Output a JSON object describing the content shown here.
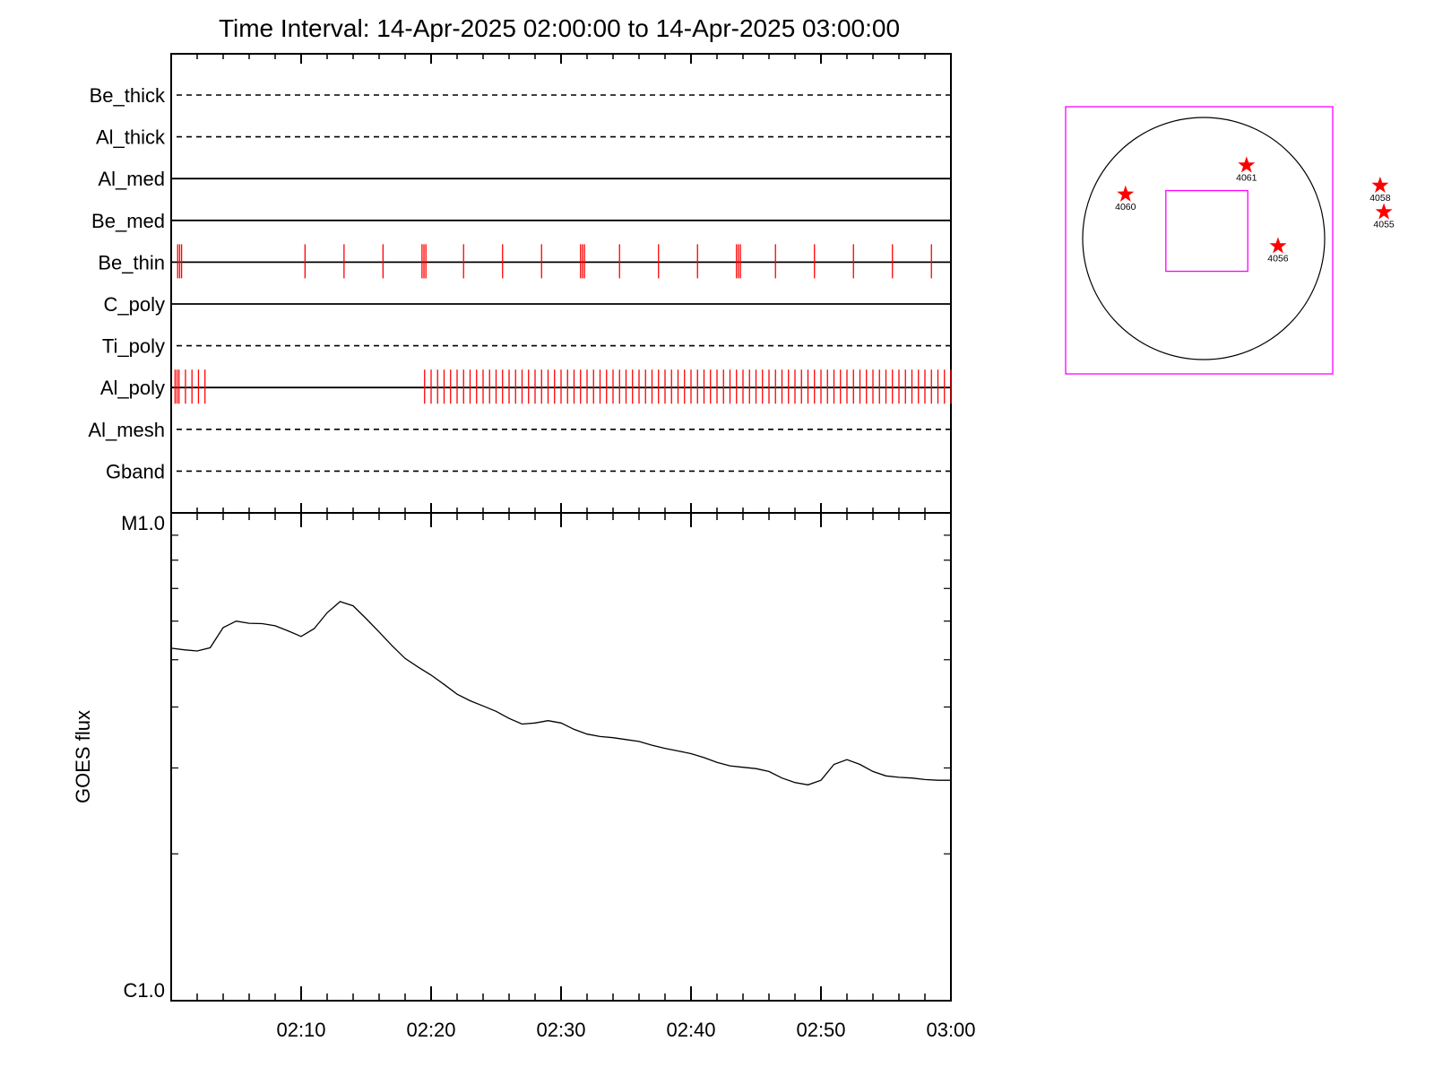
{
  "title": "Time Interval: 14-Apr-2025 02:00:00 to 14-Apr-2025 03:00:00",
  "colors": {
    "exposure_marks": "#ff0000",
    "axes": "#000000",
    "context_box": "#ff00ff",
    "star": "#ff0000"
  },
  "chart_data": [
    {
      "type": "timeline",
      "x_range": [
        0,
        60
      ],
      "x_unit": "minutes after 02:00",
      "channels": [
        {
          "name": "Be_thick",
          "line": "dashed",
          "exposures": []
        },
        {
          "name": "Al_thick",
          "line": "dashed",
          "exposures": []
        },
        {
          "name": "Al_med",
          "line": "solid",
          "exposures": []
        },
        {
          "name": "Be_med",
          "line": "solid",
          "exposures": []
        },
        {
          "name": "Be_thin",
          "line": "solid",
          "exposures": [
            0.5,
            0.65,
            0.8,
            10.3,
            13.3,
            16.3,
            19.3,
            19.45,
            19.6,
            22.5,
            25.5,
            28.5,
            31.5,
            31.65,
            31.8,
            34.5,
            37.5,
            40.5,
            43.5,
            43.65,
            43.8,
            46.5,
            49.5,
            52.5,
            55.5,
            58.5
          ]
        },
        {
          "name": "C_poly",
          "line": "solid",
          "exposures": []
        },
        {
          "name": "Ti_poly",
          "line": "dashed",
          "exposures": []
        },
        {
          "name": "Al_poly",
          "line": "solid",
          "exposures": [
            0.3,
            0.45,
            0.6,
            1.1,
            1.6,
            2.1,
            2.6,
            19.5,
            20.0,
            20.5,
            21.0,
            21.5,
            22.0,
            22.5,
            23.0,
            23.5,
            24.0,
            24.5,
            25.0,
            25.5,
            26.0,
            26.5,
            27.0,
            27.5,
            28.0,
            28.5,
            29.0,
            29.5,
            30.0,
            30.5,
            31.0,
            31.5,
            32.0,
            32.5,
            33.0,
            33.5,
            34.0,
            34.5,
            35.0,
            35.5,
            36.0,
            36.5,
            37.0,
            37.5,
            38.0,
            38.5,
            39.0,
            39.5,
            40.0,
            40.5,
            41.0,
            41.5,
            42.0,
            42.5,
            43.0,
            43.5,
            44.0,
            44.5,
            45.0,
            45.5,
            46.0,
            46.5,
            47.0,
            47.5,
            48.0,
            48.5,
            49.0,
            49.5,
            50.0,
            50.5,
            51.0,
            51.5,
            52.0,
            52.5,
            53.0,
            53.5,
            54.0,
            54.5,
            55.0,
            55.5,
            56.0,
            56.5,
            57.0,
            57.5,
            58.0,
            58.5,
            59.0,
            59.5,
            60.0
          ]
        },
        {
          "name": "Al_mesh",
          "line": "dashed",
          "exposures": []
        },
        {
          "name": "Gband",
          "line": "dashed",
          "exposures": []
        }
      ]
    },
    {
      "type": "line",
      "ylabel": "GOES flux",
      "y_scale": "log",
      "y_range": [
        1e-06,
        1e-05
      ],
      "y_tick_labels": [
        "C1.0",
        "M1.0"
      ],
      "x_range": [
        0,
        60
      ],
      "x_ticks": [
        10,
        20,
        30,
        40,
        50,
        60
      ],
      "x_tick_labels": [
        "02:10",
        "02:20",
        "02:30",
        "02:40",
        "02:50",
        "03:00"
      ],
      "series": [
        {
          "x": [
            0,
            1,
            2,
            3,
            4,
            5,
            6,
            7,
            8,
            9,
            10,
            11,
            12,
            13,
            14,
            15,
            16,
            17,
            18,
            19,
            20,
            21,
            22,
            23,
            24,
            25,
            26,
            27,
            28,
            29,
            30,
            31,
            32,
            33,
            34,
            35,
            36,
            37,
            38,
            39,
            40,
            41,
            42,
            43,
            44,
            45,
            46,
            47,
            48,
            49,
            50,
            51,
            52,
            53,
            54,
            55,
            56,
            57,
            58,
            59,
            60
          ],
          "y": [
            5.28e-06,
            5.24e-06,
            5.21e-06,
            5.29e-06,
            5.82e-06,
            6e-06,
            5.94e-06,
            5.93e-06,
            5.87e-06,
            5.73e-06,
            5.58e-06,
            5.79e-06,
            6.24e-06,
            6.58e-06,
            6.45e-06,
            6.07e-06,
            5.7e-06,
            5.34e-06,
            5.03e-06,
            4.83e-06,
            4.65e-06,
            4.45e-06,
            4.25e-06,
            4.12e-06,
            4.02e-06,
            3.92e-06,
            3.79e-06,
            3.69e-06,
            3.71e-06,
            3.75e-06,
            3.71e-06,
            3.6e-06,
            3.52e-06,
            3.48e-06,
            3.46e-06,
            3.43e-06,
            3.4e-06,
            3.34e-06,
            3.29e-06,
            3.25e-06,
            3.21e-06,
            3.15e-06,
            3.08e-06,
            3.03e-06,
            3.01e-06,
            2.99e-06,
            2.95e-06,
            2.86e-06,
            2.8e-06,
            2.77e-06,
            2.83e-06,
            3.05e-06,
            3.12e-06,
            3.05e-06,
            2.95e-06,
            2.89e-06,
            2.87e-06,
            2.86e-06,
            2.84e-06,
            2.83e-06,
            2.83e-06
          ]
        }
      ]
    }
  ],
  "context_map": {
    "regions": [
      {
        "label": "4060",
        "x": -620,
        "y": 350
      },
      {
        "label": "4061",
        "x": 340,
        "y": 580
      },
      {
        "label": "4058",
        "x": 1400,
        "y": 420
      },
      {
        "label": "4055",
        "x": 1430,
        "y": 210
      },
      {
        "label": "4056",
        "x": 590,
        "y": -60
      }
    ],
    "fov": {
      "x_range": [
        -300,
        350
      ],
      "y_range": [
        -260,
        380
      ]
    }
  }
}
